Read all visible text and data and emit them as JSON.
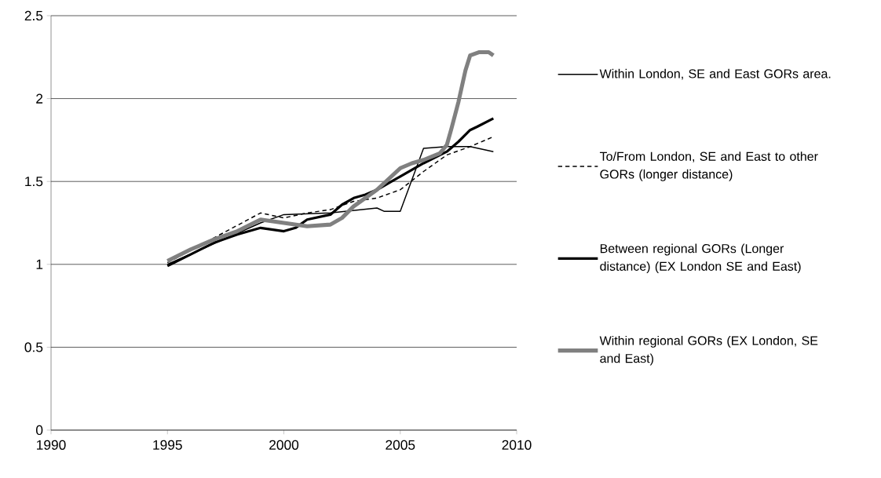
{
  "chart_data": {
    "type": "line",
    "xlim": [
      1990,
      2010
    ],
    "xticks": [
      1990,
      1995,
      2000,
      2005,
      2010
    ],
    "ylim": [
      0,
      2.5
    ],
    "yticks": [
      0,
      0.5,
      1,
      1.5,
      2,
      2.5
    ],
    "grid": "y",
    "legend": "right",
    "marker": "none",
    "series": [
      {
        "name": "Within London, SE and East GORs area.",
        "color": "#000000",
        "line_style": "solid",
        "x": [
          1995,
          1999,
          2000,
          2002,
          2004,
          2004.3,
          2005,
          2006,
          2007,
          2008,
          2009
        ],
        "values": [
          1.0,
          1.25,
          1.3,
          1.31,
          1.34,
          1.32,
          1.32,
          1.7,
          1.71,
          1.71,
          1.68
        ]
      },
      {
        "name": "To/From London, SE and East to other GORs (longer distance)",
        "color": "#000000",
        "line_style": "dashed",
        "x": [
          1995,
          1999,
          2000,
          2001,
          2002,
          2003,
          2004,
          2005,
          2006,
          2007,
          2008,
          2009
        ],
        "values": [
          1.01,
          1.31,
          1.28,
          1.31,
          1.33,
          1.38,
          1.4,
          1.45,
          1.56,
          1.66,
          1.71,
          1.77
        ]
      },
      {
        "name": "Between regional GORs (Longer distance) (EX London SE and East)",
        "color": "#000000",
        "line_style": "solid",
        "x": [
          1995,
          1996,
          1997,
          1998,
          1999,
          2000,
          2000.5,
          2001,
          2002,
          2002.5,
          2003,
          2003.5,
          2004,
          2005,
          2006,
          2007,
          2007.5,
          2008,
          2008.3,
          2009
        ],
        "values": [
          0.99,
          1.06,
          1.13,
          1.18,
          1.22,
          1.2,
          1.22,
          1.27,
          1.3,
          1.36,
          1.4,
          1.42,
          1.45,
          1.53,
          1.61,
          1.68,
          1.74,
          1.81,
          1.83,
          1.88
        ]
      },
      {
        "name": "Within regional GORs (EX London, SE and East)",
        "color": "#808080",
        "line_style": "solid",
        "x": [
          1995,
          1996,
          1997,
          1998,
          1999,
          2000,
          2001,
          2002,
          2002.5,
          2003,
          2004,
          2005,
          2005.5,
          2006,
          2006.7,
          2007,
          2007.2,
          2007.5,
          2007.8,
          2008,
          2008.4,
          2008.8,
          2009
        ],
        "values": [
          1.02,
          1.09,
          1.15,
          1.2,
          1.27,
          1.25,
          1.23,
          1.24,
          1.28,
          1.35,
          1.45,
          1.58,
          1.61,
          1.63,
          1.67,
          1.72,
          1.82,
          1.98,
          2.17,
          2.26,
          2.28,
          2.28,
          2.26
        ]
      }
    ]
  }
}
